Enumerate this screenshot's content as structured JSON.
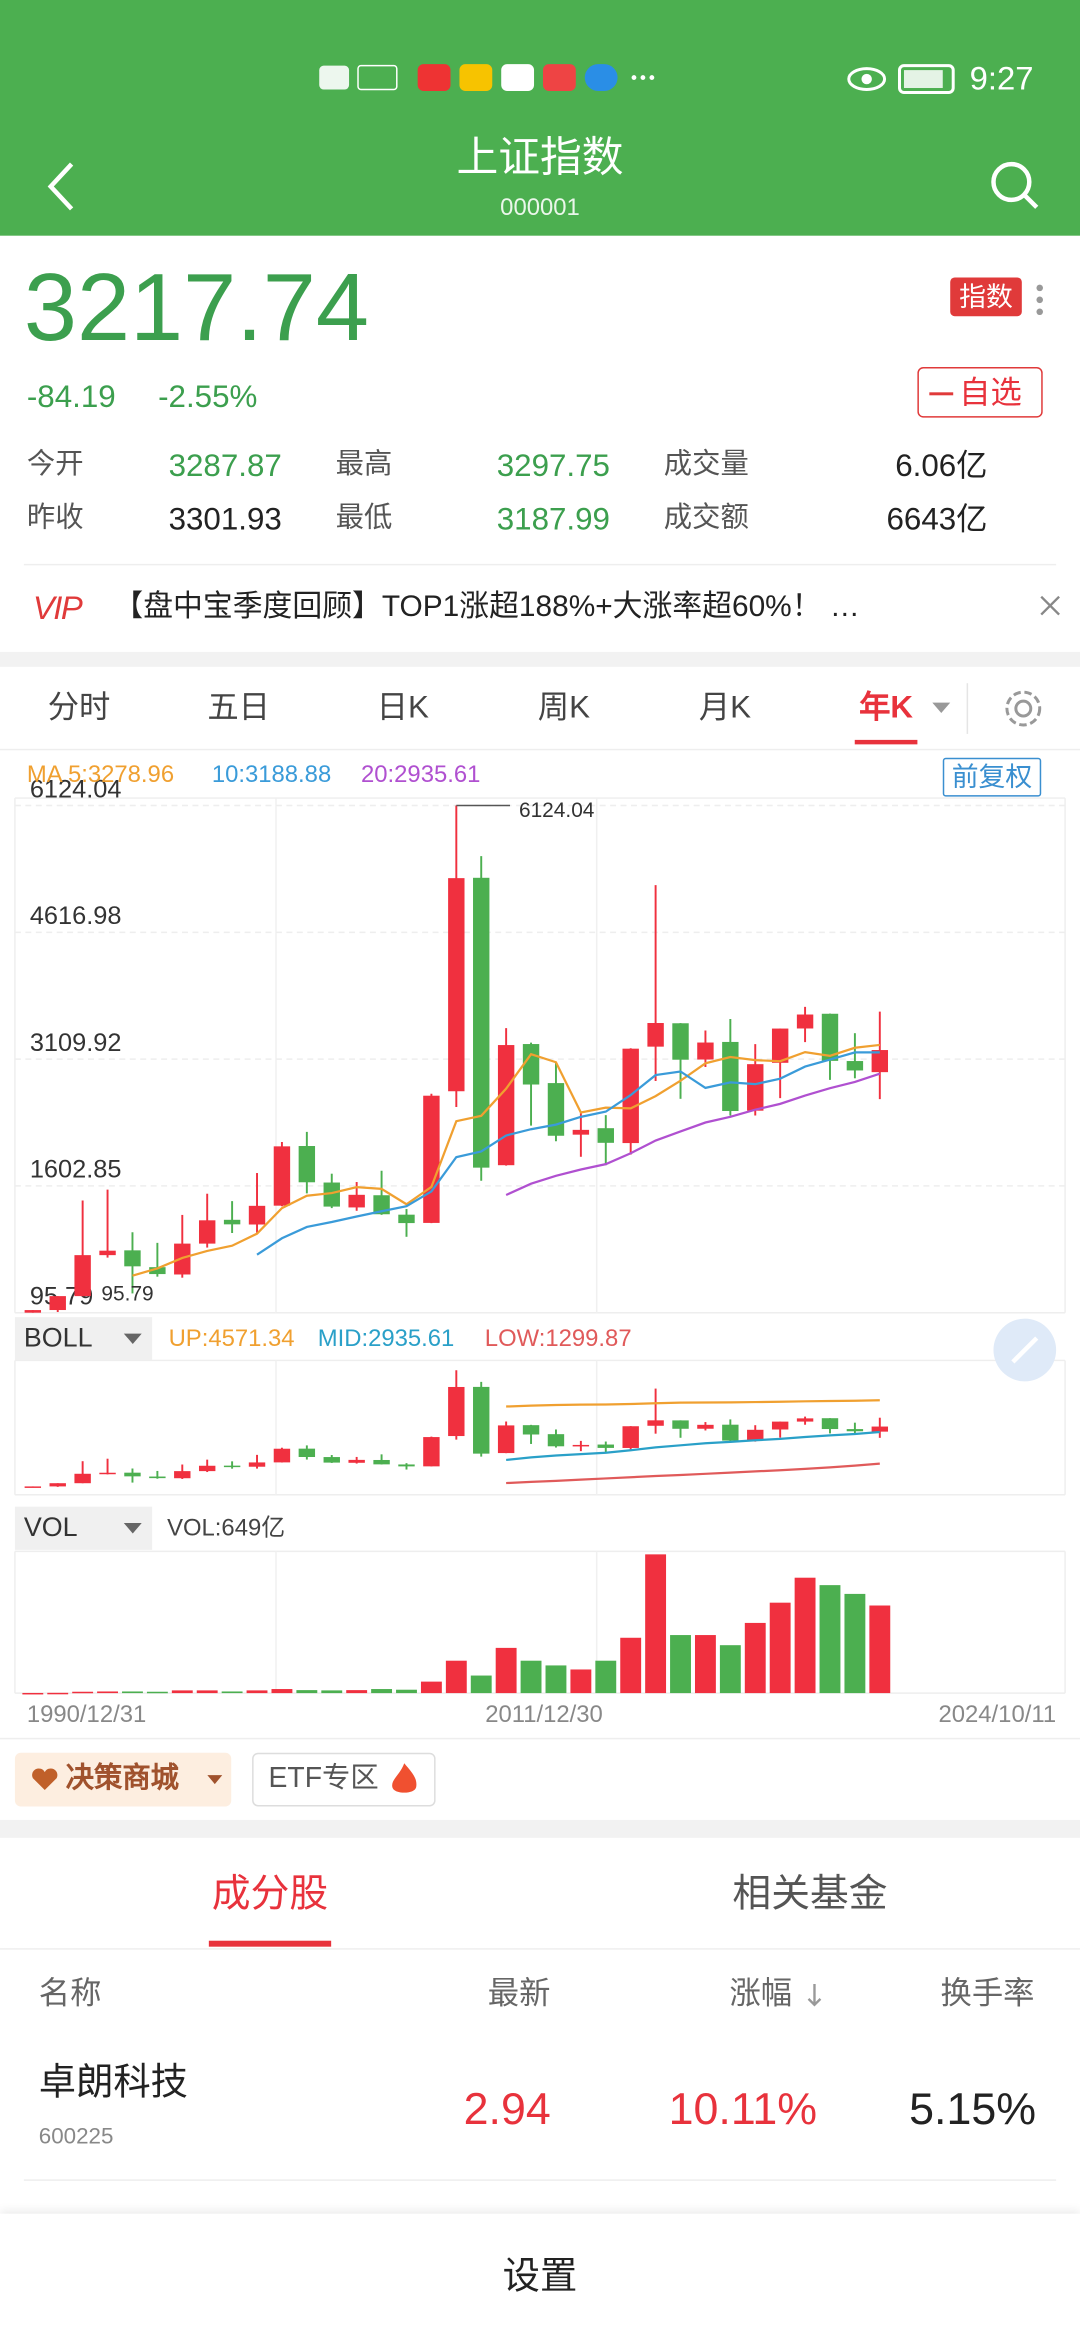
{
  "status": {
    "time": "9:27"
  },
  "header": {
    "title": "上证指数",
    "code": "000001"
  },
  "quote": {
    "price": "3217.74",
    "change": "-84.19",
    "change_pct": "-2.55%",
    "badge": "指数",
    "watch": "自选",
    "stats": [
      [
        [
          "今开",
          "3287.87"
        ],
        [
          "最高",
          "3297.75"
        ],
        [
          "成交量",
          "6.06亿"
        ]
      ],
      [
        [
          "昨收",
          "3301.93"
        ],
        [
          "最低",
          "3187.99"
        ],
        [
          "成交额",
          "6643亿"
        ]
      ]
    ]
  },
  "banner": {
    "vip": "VIP",
    "text": "【盘中宝季度回顾】TOP1涨超188%+大涨率超60%！ …"
  },
  "tabs": {
    "items": [
      "分时",
      "五日",
      "日K",
      "周K",
      "月K",
      "年K"
    ],
    "active": 5
  },
  "adjust": "前复权",
  "chart_data": [
    {
      "type": "candlestick",
      "categories": [
        "1990/12/31",
        null,
        null,
        null,
        null,
        null,
        null,
        null,
        null,
        null,
        null,
        null,
        null,
        null,
        null,
        null,
        null,
        null,
        null,
        null,
        null,
        "2011/12/30",
        null,
        null,
        null,
        null,
        null,
        null,
        null,
        null,
        null,
        null,
        null,
        null,
        "2024/10/11"
      ],
      "open": [
        96,
        127.6,
        293,
        780,
        837,
        637,
        550,
        917,
        1200,
        1144,
        1368,
        2077,
        1643,
        1347,
        1492,
        1261,
        1163,
        2728,
        5265,
        1849,
        3289,
        2825,
        2212,
        2289,
        2112,
        3258,
        3536,
        3105,
        3314,
        2497,
        3066,
        3474,
        3649,
        3087,
        2955
      ],
      "high": [
        127,
        292,
        1429,
        1558,
        1052,
        926,
        1258,
        1510,
        1422,
        1756,
        2125,
        2245,
        1748,
        1649,
        1783,
        1328,
        2698,
        6124.04,
        5522,
        3478,
        3306,
        3067,
        2478,
        2444,
        3239,
        5178,
        3538,
        3450,
        3587,
        3288,
        3474,
        3731,
        3651,
        3418,
        3674
      ],
      "low": [
        95.79,
        104,
        292,
        750,
        325,
        524,
        512,
        870,
        1043,
        1047,
        1361,
        1514,
        1339,
        1307,
        1259,
        998,
        1161,
        2541,
        1664,
        1844,
        2319,
        2134,
        1949,
        1849,
        1974,
        2850,
        2638,
        3016,
        2440,
        2440,
        2646,
        3312,
        2863,
        2882,
        2635
      ],
      "close": [
        127,
        293,
        780,
        833,
        647,
        555,
        917,
        1194,
        1146,
        1366,
        2073,
        1646,
        1357,
        1497,
        1266,
        1161,
        2675,
        5261,
        1820,
        3277,
        2808,
        2199,
        2269,
        2115,
        3234,
        3539,
        3103,
        3307,
        2493,
        3050,
        3473,
        3640,
        3089,
        2975,
        3217.74
      ],
      "up_color": "#f0303f",
      "down_color": "#4caf50",
      "series": [
        {
          "name": "MA 5:3278.96",
          "color": "#f0a030",
          "values": [
            null,
            null,
            null,
            null,
            536,
            622,
            746,
            829,
            892,
            1036,
            1339,
            1485,
            1518,
            1588,
            1568,
            1385,
            1591,
            2372,
            2437,
            2759,
            3168,
            3073,
            2475,
            2534,
            2525,
            2671,
            2852,
            3060,
            3135,
            3098,
            3085,
            3193,
            3149,
            3245,
            3278.96
          ]
        },
        {
          "name": "10:3188.88",
          "color": "#3a9bd9",
          "values": [
            null,
            null,
            null,
            null,
            null,
            null,
            null,
            null,
            null,
            786,
            980,
            1116,
            1173,
            1240,
            1302,
            1362,
            1538,
            1945,
            2012,
            2203,
            2277,
            2332,
            2423,
            2485,
            2682,
            2920,
            2963,
            2767,
            2834,
            2812,
            2878,
            3022,
            3104,
            3190,
            3188.88
          ]
        },
        {
          "name": "20:2935.61",
          "color": "#b050d0",
          "values": [
            null,
            null,
            null,
            null,
            null,
            null,
            null,
            null,
            null,
            null,
            null,
            null,
            null,
            null,
            null,
            null,
            null,
            null,
            null,
            1495,
            1629,
            1724,
            1798,
            1862,
            1992,
            2141,
            2250,
            2356,
            2423,
            2508,
            2578,
            2677,
            2764,
            2838,
            2935.61
          ]
        }
      ],
      "ylim": [
        95.79,
        6124.04
      ],
      "yticks": [
        95.79,
        1602.85,
        3109.92,
        4616.98,
        6124.04
      ],
      "grid": true
    },
    {
      "type": "boll",
      "name": "BOLL",
      "ylim": [
        -300,
        6400
      ],
      "series": [
        {
          "name": "UP:4571.34",
          "color": "#f0a030",
          "values": [
            null,
            null,
            null,
            null,
            null,
            null,
            null,
            null,
            null,
            null,
            null,
            null,
            null,
            null,
            null,
            null,
            null,
            null,
            null,
            4250,
            4300,
            4330,
            4350,
            4360,
            4380,
            4420,
            4450,
            4460,
            4470,
            4480,
            4500,
            4520,
            4540,
            4555,
            4571.34
          ]
        },
        {
          "name": "MID:2935.61",
          "color": "#2aa0c8",
          "values": [
            null,
            null,
            null,
            null,
            null,
            null,
            null,
            null,
            null,
            null,
            null,
            null,
            null,
            null,
            null,
            null,
            null,
            null,
            null,
            1495,
            1629,
            1724,
            1798,
            1862,
            1992,
            2141,
            2250,
            2356,
            2423,
            2508,
            2578,
            2677,
            2764,
            2838,
            2935.61
          ]
        },
        {
          "name": "LOW:1299.87",
          "color": "#e05a5a",
          "values": [
            null,
            null,
            null,
            null,
            null,
            null,
            null,
            null,
            null,
            null,
            null,
            null,
            null,
            null,
            null,
            null,
            null,
            null,
            null,
            300,
            360,
            420,
            480,
            540,
            600,
            660,
            720,
            780,
            840,
            900,
            960,
            1030,
            1110,
            1200,
            1299.87
          ]
        }
      ]
    },
    {
      "type": "volume",
      "name": "VOL",
      "legend": "VOL:649亿",
      "values": [
        1,
        2,
        10,
        12,
        12,
        10,
        20,
        20,
        12,
        20,
        30,
        22,
        20,
        22,
        30,
        25,
        85,
        240,
        130,
        335,
        240,
        205,
        175,
        240,
        410,
        1028,
        430,
        430,
        355,
        520,
        670,
        855,
        800,
        735,
        649
      ],
      "ylim": [
        0,
        1028
      ]
    }
  ],
  "chips": [
    "决策商城",
    "ETF专区"
  ],
  "list": {
    "tabs": [
      "成分股",
      "相关基金"
    ],
    "columns": [
      "名称",
      "最新",
      "涨幅",
      "换手率"
    ],
    "rows": [
      {
        "name": "卓朗科技",
        "code": "600225",
        "price": "2.94",
        "change": "10.11%",
        "turnover": "5.15%"
      }
    ]
  },
  "footer": {
    "button": "设置"
  }
}
